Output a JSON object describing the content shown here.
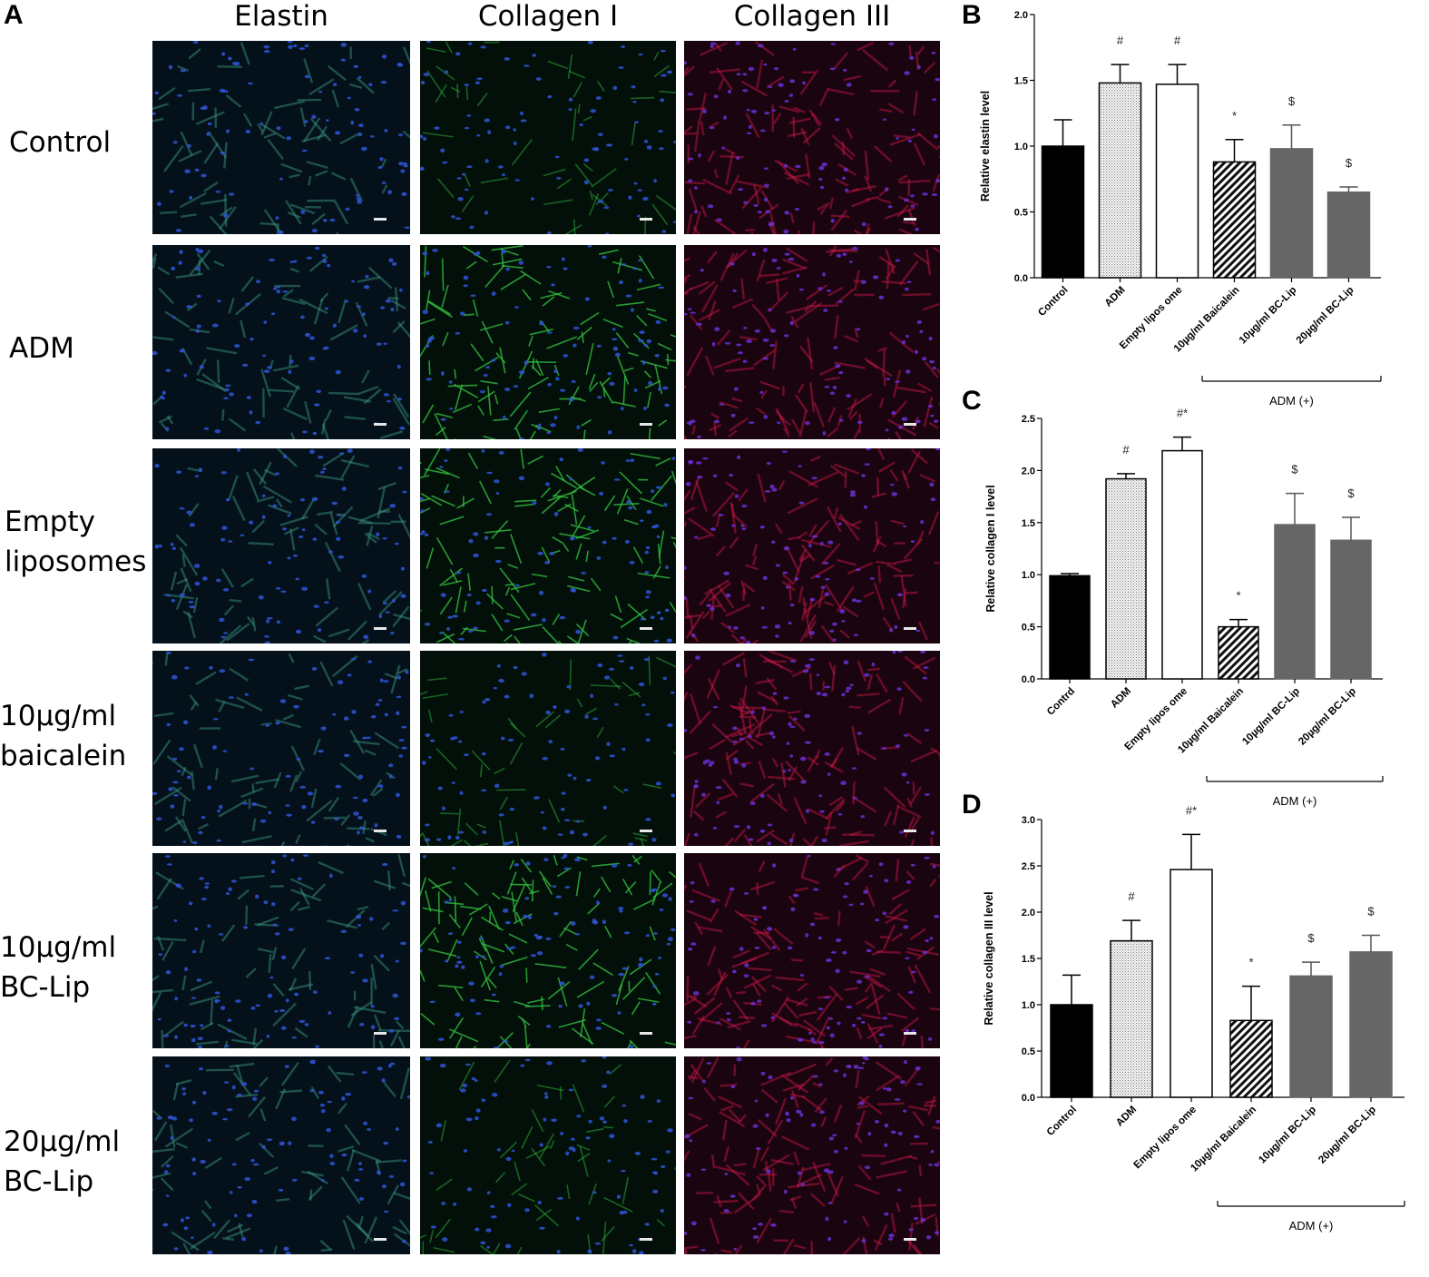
{
  "panel_a": {
    "letter": "A",
    "columns": [
      {
        "label": "Elastin",
        "stain": "elastin",
        "color": "#3fa08a"
      },
      {
        "label": "Collagen I",
        "stain": "collagen1",
        "color": "#35c840"
      },
      {
        "label": "Collagen III",
        "stain": "collagen3",
        "color": "#d0184a"
      }
    ],
    "rows": [
      {
        "lines": [
          "Control"
        ]
      },
      {
        "lines": [
          "ADM"
        ]
      },
      {
        "lines": [
          "Empty",
          "liposomes"
        ]
      },
      {
        "lines": [
          "10µg/ml",
          "baicalein"
        ]
      },
      {
        "lines": [
          "10µg/ml",
          "BC-Lip"
        ]
      },
      {
        "lines": [
          "20µg/ml",
          "BC-Lip"
        ]
      }
    ]
  },
  "chart_data": [
    {
      "panel": "B",
      "type": "bar",
      "ylabel": "Relative elastin level",
      "ylim": [
        0,
        2.0
      ],
      "yticks": [
        "0.0",
        "0.5",
        "1.0",
        "1.5",
        "2.0"
      ],
      "categories": [
        "Control",
        "ADM",
        "Empty lipos ome",
        "10µg/ml Baicalein",
        "10µg/ml BC-Lip",
        "20µg/ml BC-Lip"
      ],
      "values": [
        1.0,
        1.48,
        1.47,
        0.88,
        0.98,
        0.65
      ],
      "errors": [
        0.2,
        0.14,
        0.15,
        0.17,
        0.18,
        0.04
      ],
      "annotations": [
        "",
        "#",
        "#",
        "*",
        "$",
        "$"
      ],
      "bar_styles": [
        "black",
        "dotted",
        "white",
        "hatched",
        "gray",
        "gray"
      ],
      "group_label": "ADM (+)",
      "grid": false
    },
    {
      "panel": "C",
      "type": "bar",
      "ylabel": "Relative collagen I level",
      "ylim": [
        0,
        2.5
      ],
      "yticks": [
        "0.0",
        "0.5",
        "1.0",
        "1.5",
        "2.0",
        "2.5"
      ],
      "categories": [
        "Contrd",
        "ADM",
        "Empty lipos ome",
        "10µg/ml Baicalein",
        "10µg/ml BC-Lip",
        "20µg/ml BC-Lip"
      ],
      "values": [
        0.99,
        1.92,
        2.19,
        0.5,
        1.48,
        1.33
      ],
      "errors": [
        0.02,
        0.05,
        0.13,
        0.07,
        0.3,
        0.22
      ],
      "annotations": [
        "",
        "#",
        "#*",
        "*",
        "$",
        "$"
      ],
      "bar_styles": [
        "black",
        "dotted",
        "white",
        "hatched",
        "gray",
        "gray"
      ],
      "group_label": "ADM (+)",
      "grid": false
    },
    {
      "panel": "D",
      "type": "bar",
      "ylabel": "Relative collagen III level",
      "ylim": [
        0,
        3.0
      ],
      "yticks": [
        "0.0",
        "0.5",
        "1.0",
        "1.5",
        "2.0",
        "2.5",
        "3.0"
      ],
      "categories": [
        "Control",
        "ADM",
        "Empty lipos ome",
        "10µg/ml Baicalein",
        "10µg/ml BC-Lip",
        "20µg/ml BC-Lip"
      ],
      "values": [
        1.0,
        1.69,
        2.46,
        0.83,
        1.31,
        1.57
      ],
      "errors": [
        0.32,
        0.22,
        0.38,
        0.37,
        0.15,
        0.18
      ],
      "annotations": [
        "",
        "#",
        "#*",
        "*",
        "$",
        "$"
      ],
      "bar_styles": [
        "black",
        "dotted",
        "white",
        "hatched",
        "gray",
        "gray"
      ],
      "group_label": "ADM (+)",
      "grid": false
    }
  ]
}
